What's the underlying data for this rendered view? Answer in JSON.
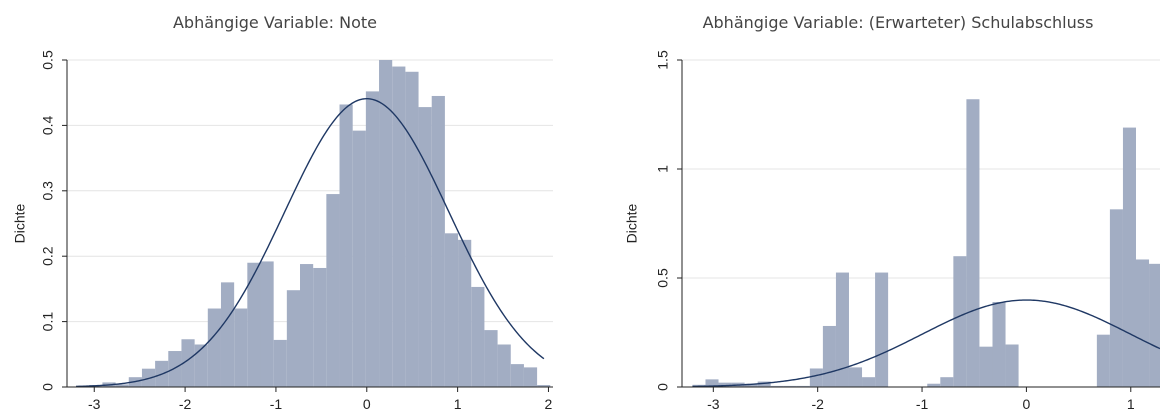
{
  "chart_data": [
    {
      "type": "bar",
      "subtype": "histogram-with-normal-curve",
      "title": "Abhängige Variable: Note",
      "xlabel": "",
      "ylabel": "Dichte",
      "xlim": [
        -3.3,
        2.05
      ],
      "ylim": [
        0,
        0.5
      ],
      "xticks": [
        -3,
        -2,
        -1,
        0,
        1,
        2
      ],
      "yticks": [
        0,
        0.1,
        0.2,
        0.3,
        0.4,
        0.5
      ],
      "ytick_labels": [
        "0",
        "0.1",
        "0.2",
        "0.3",
        "0.4",
        "0.5"
      ],
      "grid": true,
      "bar_color": "#a2adc3",
      "curve_color": "#1f3864",
      "bin_width": 0.145,
      "bins_start": [
        -3.2,
        -3.055,
        -2.91,
        -2.765,
        -2.62,
        -2.475,
        -2.33,
        -2.185,
        -2.04,
        -1.895,
        -1.75,
        -1.605,
        -1.46,
        -1.315,
        -1.17,
        -1.025,
        -0.88,
        -0.735,
        -0.59,
        -0.445,
        -0.3,
        -0.155,
        -0.01,
        0.135,
        0.28,
        0.425,
        0.57,
        0.715,
        0.86,
        1.005,
        1.15,
        1.295,
        1.44,
        1.585,
        1.73,
        1.875
      ],
      "values": [
        0.002,
        0.003,
        0.007,
        0.004,
        0.015,
        0.028,
        0.04,
        0.055,
        0.073,
        0.065,
        0.12,
        0.16,
        0.12,
        0.19,
        0.192,
        0.072,
        0.148,
        0.188,
        0.182,
        0.295,
        0.432,
        0.392,
        0.452,
        0.5,
        0.49,
        0.482,
        0.428,
        0.445,
        0.235,
        0.225,
        0.153,
        0.087,
        0.065,
        0.035,
        0.03,
        0.003
      ],
      "normal_curve": {
        "mean": 0,
        "sd": 0.905
      }
    },
    {
      "type": "bar",
      "subtype": "histogram-with-normal-curve",
      "title": "Abhängige Variable: (Erwarteter) Schulabschluss",
      "xlabel": "",
      "ylabel": "Dichte",
      "xlim": [
        -3.3,
        1.28
      ],
      "ylim": [
        0,
        1.5
      ],
      "xticks": [
        -3,
        -2,
        -1,
        0,
        1
      ],
      "yticks": [
        0,
        0.5,
        1,
        1.5
      ],
      "ytick_labels": [
        "0",
        "0.5",
        "1",
        "1.5"
      ],
      "grid": true,
      "bar_color": "#a2adc3",
      "curve_color": "#1f3864",
      "bin_width": 0.125,
      "bins_start": [
        -3.2,
        -3.075,
        -2.95,
        -2.825,
        -2.7,
        -2.575,
        -2.45,
        -2.325,
        -2.2,
        -2.075,
        -1.95,
        -1.825,
        -1.7,
        -1.575,
        -1.45,
        -1.325,
        -1.2,
        -1.075,
        -0.95,
        -0.825,
        -0.7,
        -0.575,
        -0.45,
        -0.325,
        -0.2,
        -0.075,
        0.05,
        0.175,
        0.3,
        0.425,
        0.55,
        0.675,
        0.8,
        0.925,
        1.05,
        1.175
      ],
      "values": [
        0.01,
        0.035,
        0.02,
        0.02,
        0.015,
        0.025,
        0.005,
        0.005,
        0.005,
        0.085,
        0.28,
        0.525,
        0.09,
        0.045,
        0.525,
        0,
        0,
        0,
        0.015,
        0.045,
        0.6,
        1.32,
        0.185,
        0.39,
        0.195,
        0,
        0,
        0,
        0,
        0,
        0,
        0.24,
        0.815,
        1.19,
        0.585,
        0.565
      ],
      "normal_curve": {
        "mean": 0,
        "sd": 1.0
      }
    }
  ]
}
